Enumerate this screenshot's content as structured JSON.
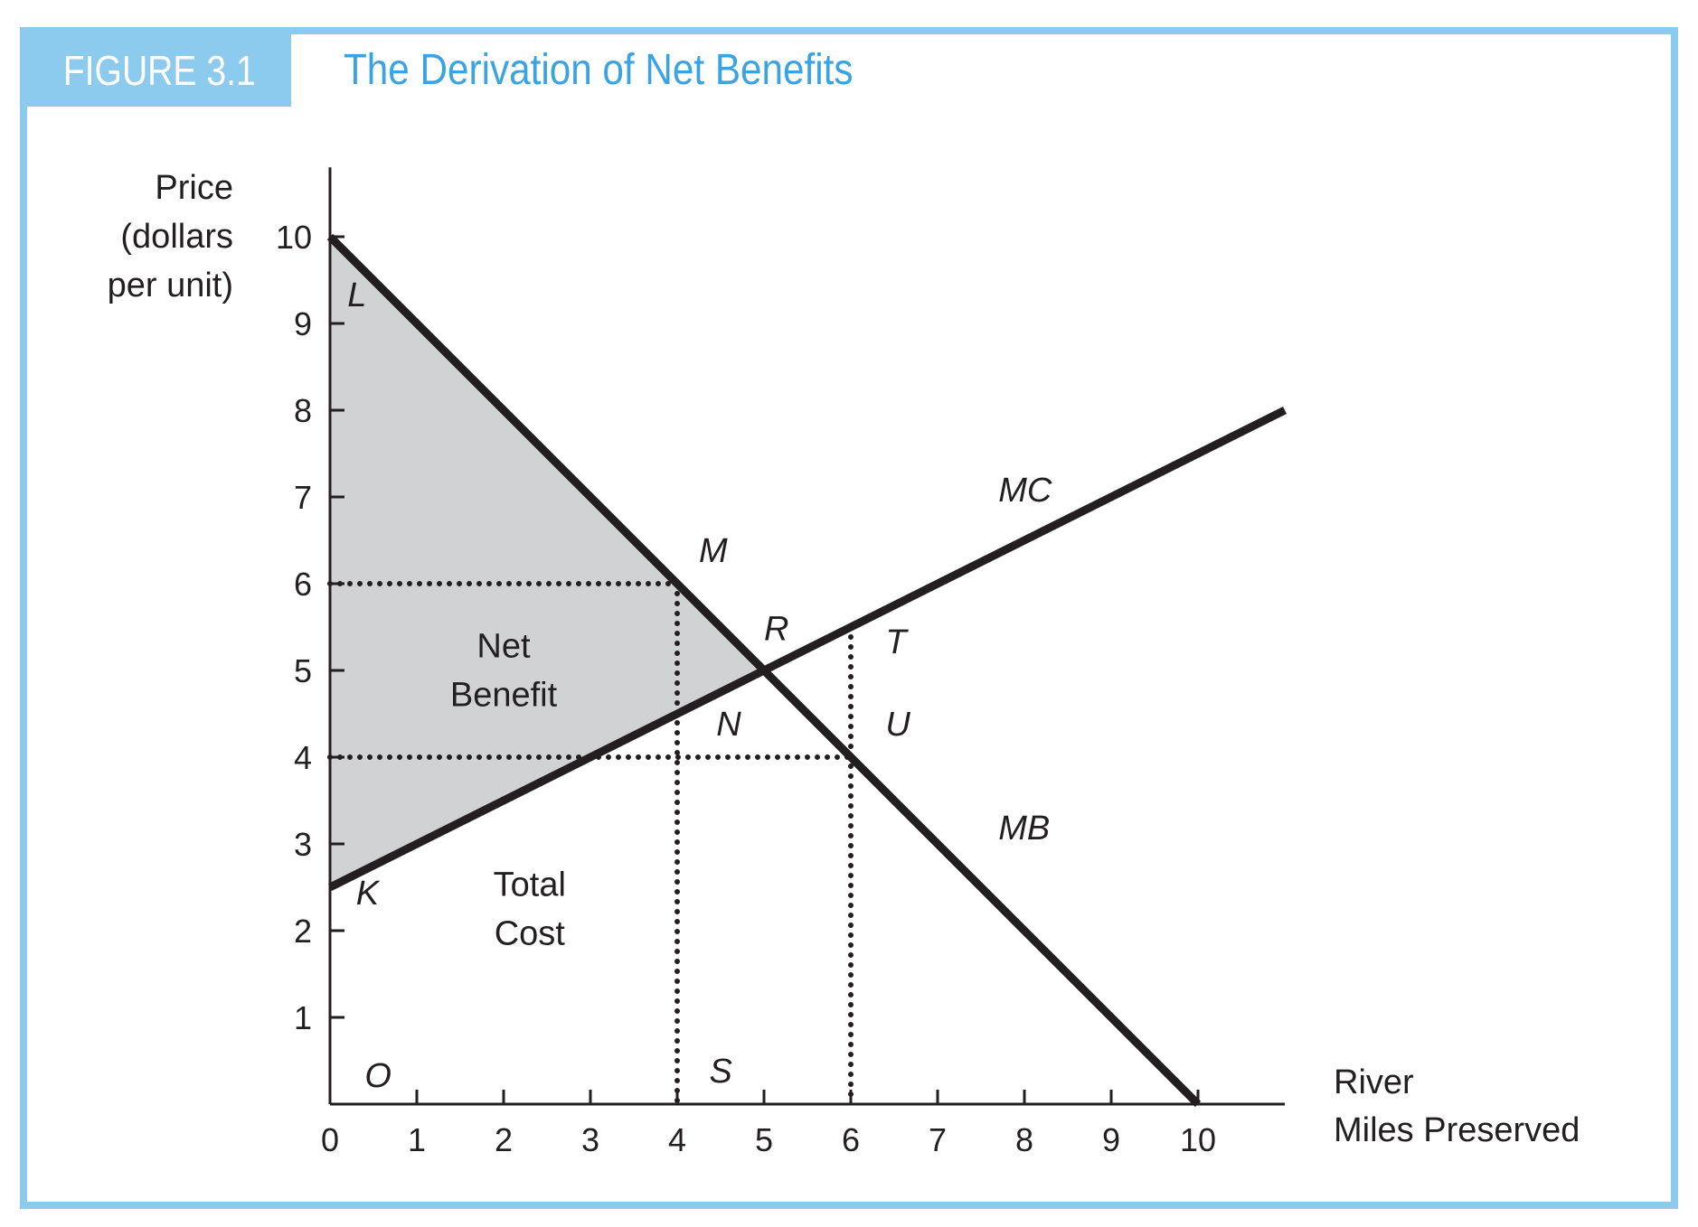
{
  "figure": {
    "label": "FIGURE 3.1",
    "title": "The Derivation of Net Benefits"
  },
  "colors": {
    "frame": "#8ccbee",
    "title": "#3aa3e3",
    "shade": "#d1d2d4",
    "ink": "#231f20"
  },
  "chart_data": {
    "type": "line",
    "title": "The Derivation of Net Benefits",
    "ylabel_lines": [
      "Price",
      "(dollars",
      "per unit)"
    ],
    "xlabel_lines": [
      "River",
      "Miles Preserved"
    ],
    "xlim": [
      0,
      11
    ],
    "ylim": [
      0,
      10.8
    ],
    "x_ticks": [
      0,
      1,
      2,
      3,
      4,
      5,
      6,
      7,
      8,
      9,
      10
    ],
    "x_tick_labels": [
      "0",
      "1",
      "2",
      "3",
      "4",
      "5",
      "6",
      "7",
      "8",
      "9",
      "10"
    ],
    "y_ticks": [
      1,
      2,
      3,
      4,
      5,
      6,
      7,
      8,
      9,
      10
    ],
    "y_tick_labels": [
      "1",
      "2",
      "3",
      "4",
      "5",
      "6",
      "7",
      "8",
      "9",
      "10"
    ],
    "grid": false,
    "series": [
      {
        "name": "MB",
        "x": [
          0,
          10
        ],
        "y": [
          10,
          0
        ]
      },
      {
        "name": "MC",
        "x": [
          0,
          11
        ],
        "y": [
          2.5,
          8
        ]
      }
    ],
    "guide_lines": [
      {
        "from": [
          0,
          6
        ],
        "to": [
          4,
          6
        ]
      },
      {
        "from": [
          4,
          6
        ],
        "to": [
          4,
          0
        ]
      },
      {
        "from": [
          0,
          4
        ],
        "to": [
          6,
          4
        ]
      },
      {
        "from": [
          6,
          5.5
        ],
        "to": [
          6,
          0
        ]
      }
    ],
    "shaded_region": {
      "name": "net-benefit-area",
      "points": [
        [
          0,
          10
        ],
        [
          5,
          5
        ],
        [
          0,
          2.5
        ]
      ]
    },
    "point_labels": [
      {
        "text": "L",
        "x": 0.2,
        "y": 9.2
      },
      {
        "text": "M",
        "x": 4.25,
        "y": 6.25
      },
      {
        "text": "R",
        "x": 5.0,
        "y": 5.35
      },
      {
        "text": "T",
        "x": 6.4,
        "y": 5.2
      },
      {
        "text": "N",
        "x": 4.45,
        "y": 4.25
      },
      {
        "text": "U",
        "x": 6.4,
        "y": 4.25
      },
      {
        "text": "K",
        "x": 0.3,
        "y": 2.3
      },
      {
        "text": "O",
        "x": 0.4,
        "y": 0.2
      },
      {
        "text": "S",
        "x": 4.37,
        "y": 0.25
      },
      {
        "text": "MC",
        "x": 7.7,
        "y": 6.95
      },
      {
        "text": "MB",
        "x": 7.7,
        "y": 3.05
      }
    ],
    "region_labels": [
      {
        "lines": [
          "Net",
          "Benefit"
        ],
        "x": 2.0,
        "y": 5.15
      },
      {
        "lines": [
          "Total",
          "Cost"
        ],
        "x": 2.3,
        "y": 2.4
      }
    ]
  }
}
